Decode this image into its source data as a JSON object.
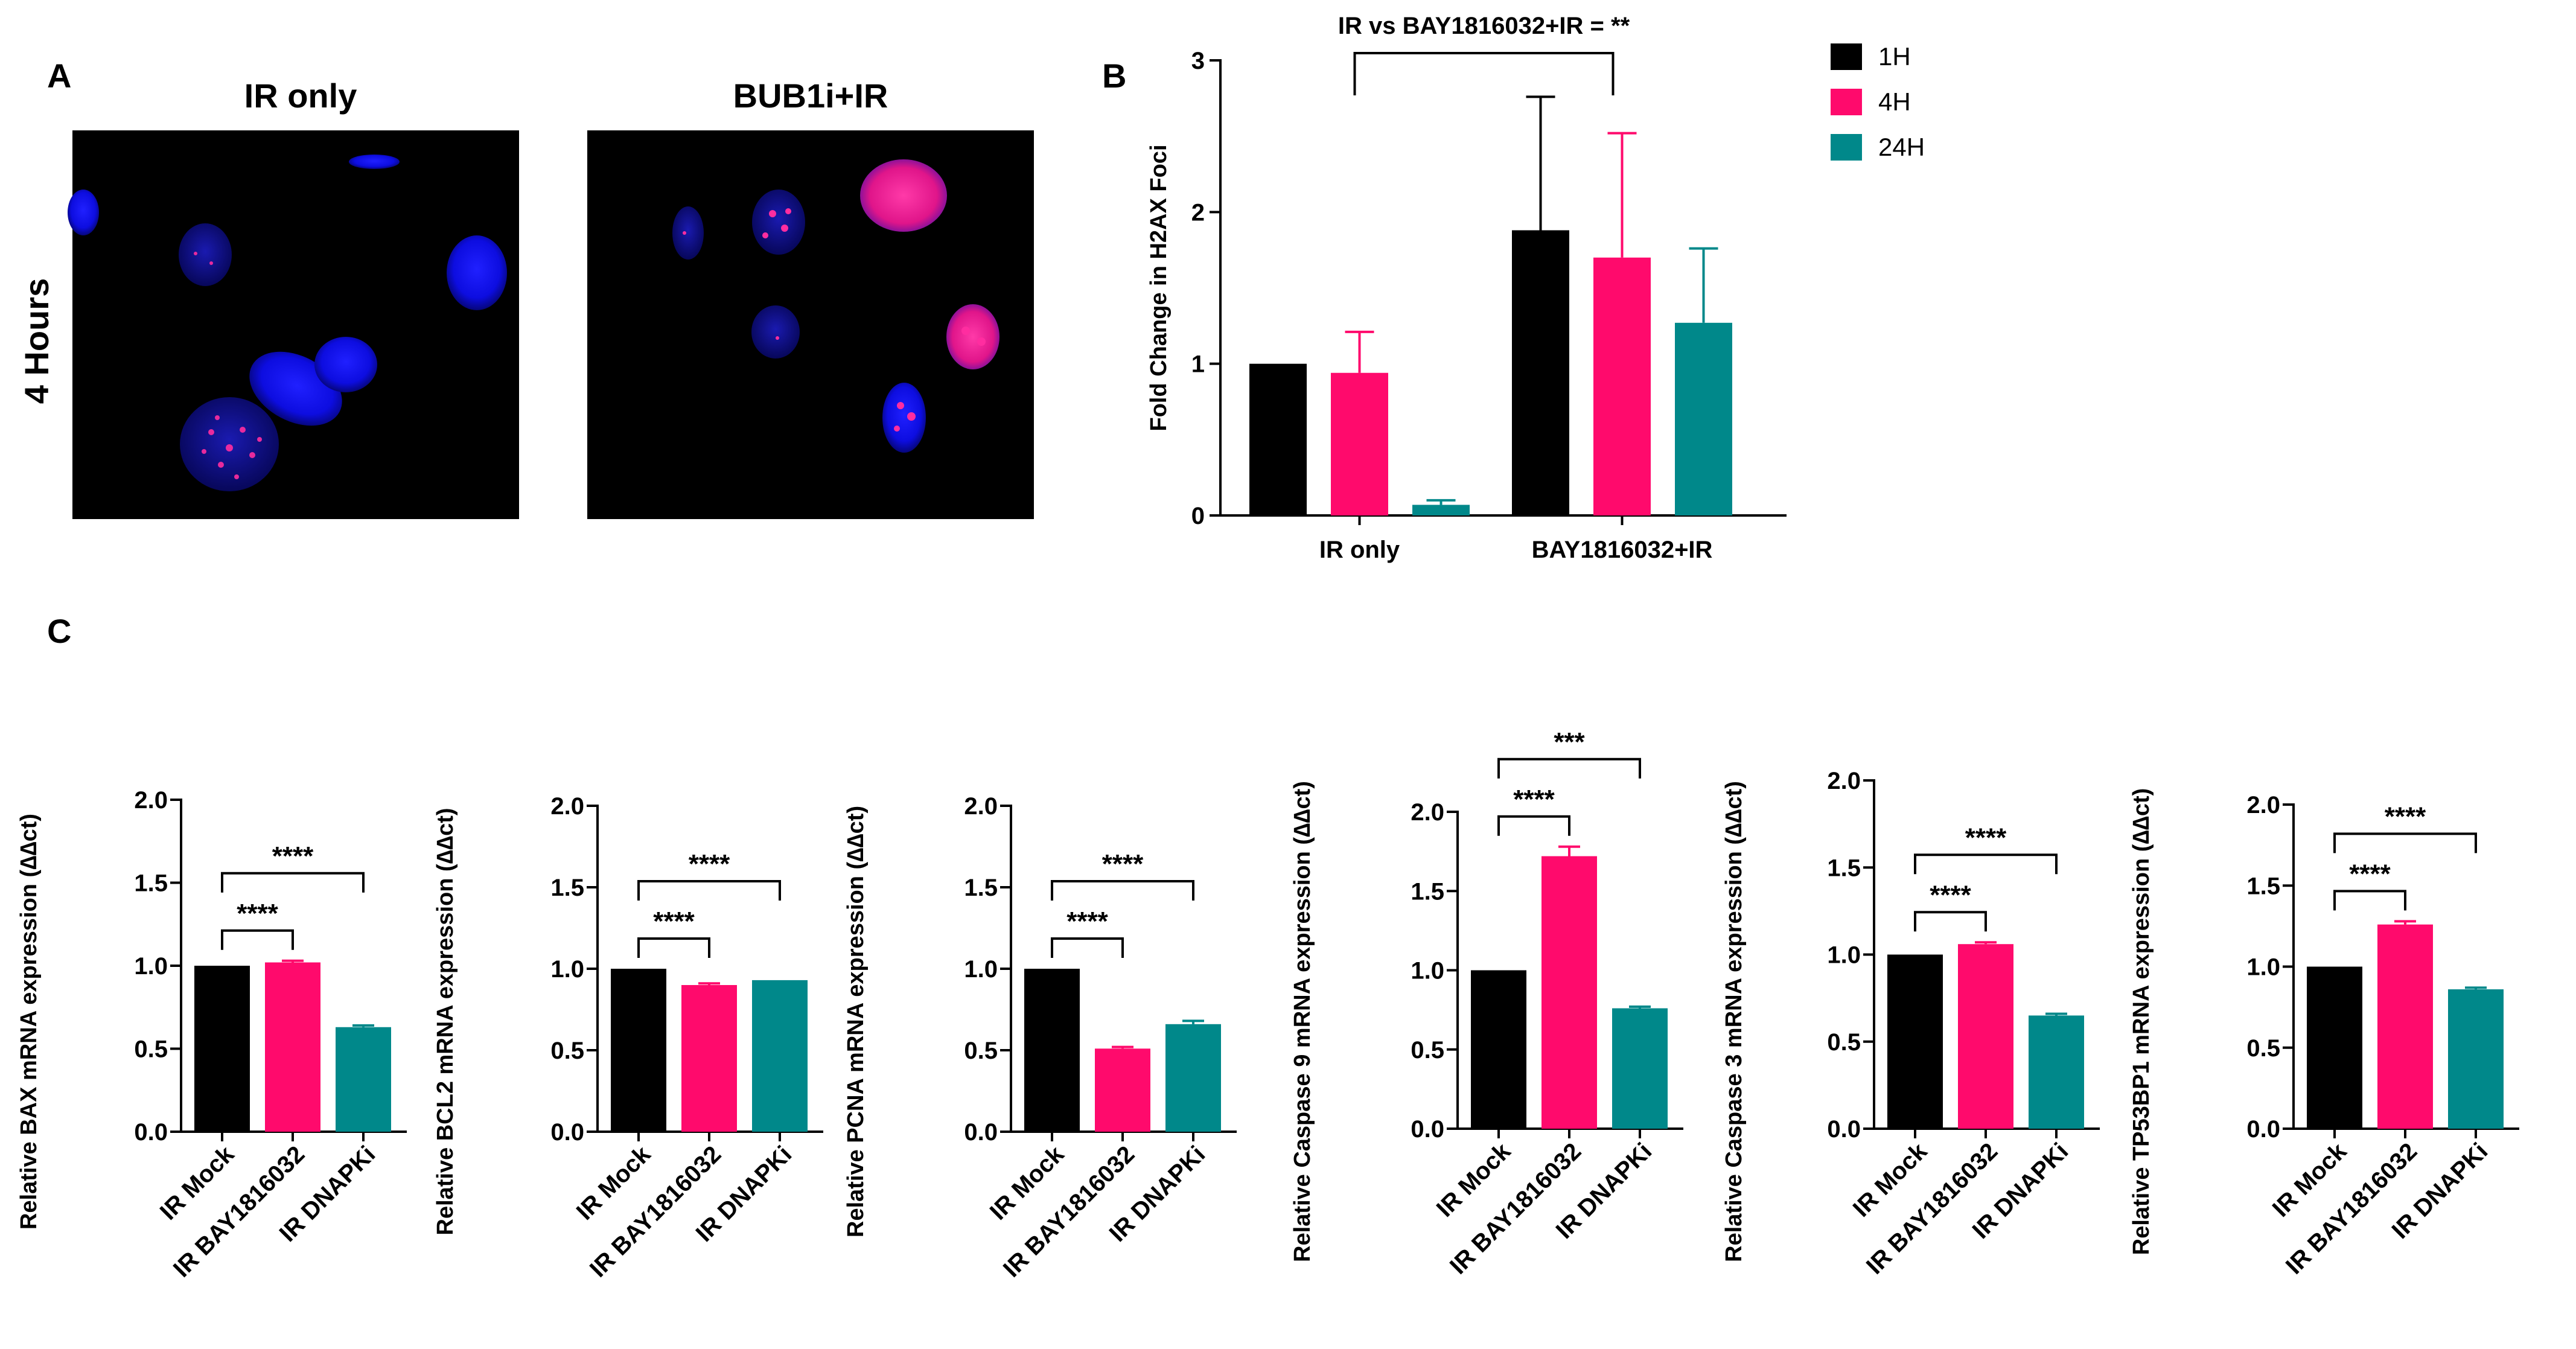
{
  "colors": {
    "black": "#000000",
    "pink": "#ff0a6c",
    "teal": "#00888a"
  },
  "panel_labels": {
    "a": "A",
    "b": "B",
    "c": "C"
  },
  "panel_a": {
    "row_label": "4 Hours",
    "images": [
      {
        "title": "IR only",
        "description": "micrograph-dapi-nuclei"
      },
      {
        "title": "BUB1i+IR",
        "description": "micrograph-h2ax-foci"
      }
    ]
  },
  "chart_data": [
    {
      "type": "bar",
      "panel": "B",
      "title": "",
      "ylabel": "Fold Change in H2AX Foci",
      "xlabel": "",
      "ylim": [
        0,
        3
      ],
      "yticks": [
        "0",
        "1",
        "2",
        "3"
      ],
      "categories": [
        "IR only",
        "BAY1816032+IR"
      ],
      "series": [
        {
          "name": "1H",
          "color": "#000000",
          "values": [
            1.0,
            1.88
          ],
          "errors": [
            0.0,
            0.88
          ]
        },
        {
          "name": "4H",
          "color": "#ff0a6c",
          "values": [
            0.94,
            1.7
          ],
          "errors": [
            0.27,
            0.82
          ]
        },
        {
          "name": "24H",
          "color": "#00888a",
          "values": [
            0.07,
            1.27
          ],
          "errors": [
            0.03,
            0.49
          ]
        }
      ],
      "legend": [
        "1H",
        "4H",
        "24H"
      ],
      "legend_position": "top-right",
      "annotation": "IR vs BAY1816032+IR = **"
    },
    {
      "type": "bar",
      "panel": "C",
      "ylabel": "Relative BAX mRNA expression (∆∆ct)",
      "ylim": [
        0,
        2.0
      ],
      "yticks": [
        "0.0",
        "0.5",
        "1.0",
        "1.5",
        "2.0"
      ],
      "categories": [
        "IR Mock",
        "IR BAY1816032",
        "IR DNAPKi"
      ],
      "values": [
        1.0,
        1.02,
        0.63
      ],
      "errors": [
        0.0,
        0.01,
        0.01
      ],
      "significance": [
        {
          "from": 0,
          "to": 1,
          "label": "****"
        },
        {
          "from": 0,
          "to": 2,
          "label": "****"
        }
      ]
    },
    {
      "type": "bar",
      "panel": "C",
      "ylabel": "Relative BCL2 mRNA expression (∆∆ct)",
      "ylim": [
        0,
        2.0
      ],
      "yticks": [
        "0.0",
        "0.5",
        "1.0",
        "1.5",
        "2.0"
      ],
      "categories": [
        "IR Mock",
        "IR BAY1816032",
        "IR DNAPKi"
      ],
      "values": [
        1.0,
        0.9,
        0.93
      ],
      "errors": [
        0.0,
        0.01,
        0.0
      ],
      "significance": [
        {
          "from": 0,
          "to": 1,
          "label": "****"
        },
        {
          "from": 0,
          "to": 2,
          "label": "****"
        }
      ]
    },
    {
      "type": "bar",
      "panel": "C",
      "ylabel": "Relative PCNA mRNA expression (∆∆ct)",
      "ylim": [
        0,
        2.0
      ],
      "yticks": [
        "0.0",
        "0.5",
        "1.0",
        "1.5",
        "2.0"
      ],
      "categories": [
        "IR Mock",
        "IR BAY1816032",
        "IR DNAPKi"
      ],
      "values": [
        1.0,
        0.51,
        0.66
      ],
      "errors": [
        0.0,
        0.01,
        0.02
      ],
      "significance": [
        {
          "from": 0,
          "to": 1,
          "label": "****"
        },
        {
          "from": 0,
          "to": 2,
          "label": "****"
        }
      ]
    },
    {
      "type": "bar",
      "panel": "C",
      "ylabel": "Relative Caspase 9 mRNA expression (∆∆ct)",
      "ylim": [
        0,
        2.0
      ],
      "yticks": [
        "0.0",
        "0.5",
        "1.0",
        "1.5",
        "2.0"
      ],
      "categories": [
        "IR Mock",
        "IR BAY1816032",
        "IR DNAPKi"
      ],
      "values": [
        1.0,
        1.72,
        0.76
      ],
      "errors": [
        0.0,
        0.06,
        0.01
      ],
      "significance": [
        {
          "from": 0,
          "to": 1,
          "label": "****"
        },
        {
          "from": 0,
          "to": 2,
          "label": "***"
        }
      ]
    },
    {
      "type": "bar",
      "panel": "C",
      "ylabel": "Relative Caspase 3 mRNA expression (∆∆ct)",
      "ylim": [
        0,
        2.0
      ],
      "yticks": [
        "0.0",
        "0.5",
        "1.0",
        "1.5",
        "2.0"
      ],
      "categories": [
        "IR Mock",
        "IR BAY1816032",
        "IR DNAPKi"
      ],
      "values": [
        1.0,
        1.06,
        0.65
      ],
      "errors": [
        0.0,
        0.01,
        0.01
      ],
      "significance": [
        {
          "from": 0,
          "to": 1,
          "label": "****"
        },
        {
          "from": 0,
          "to": 2,
          "label": "****"
        }
      ]
    },
    {
      "type": "bar",
      "panel": "C",
      "ylabel": "Relative TP53BP1 mRNA expression (∆∆ct)",
      "ylim": [
        0,
        2.0
      ],
      "yticks": [
        "0.0",
        "0.5",
        "1.0",
        "1.5",
        "2.0"
      ],
      "categories": [
        "IR Mock",
        "IR BAY1816032",
        "IR DNAPKi"
      ],
      "values": [
        1.0,
        1.26,
        0.86
      ],
      "errors": [
        0.0,
        0.02,
        0.01
      ],
      "significance": [
        {
          "from": 0,
          "to": 1,
          "label": "****"
        },
        {
          "from": 0,
          "to": 2,
          "label": "****"
        }
      ]
    }
  ]
}
